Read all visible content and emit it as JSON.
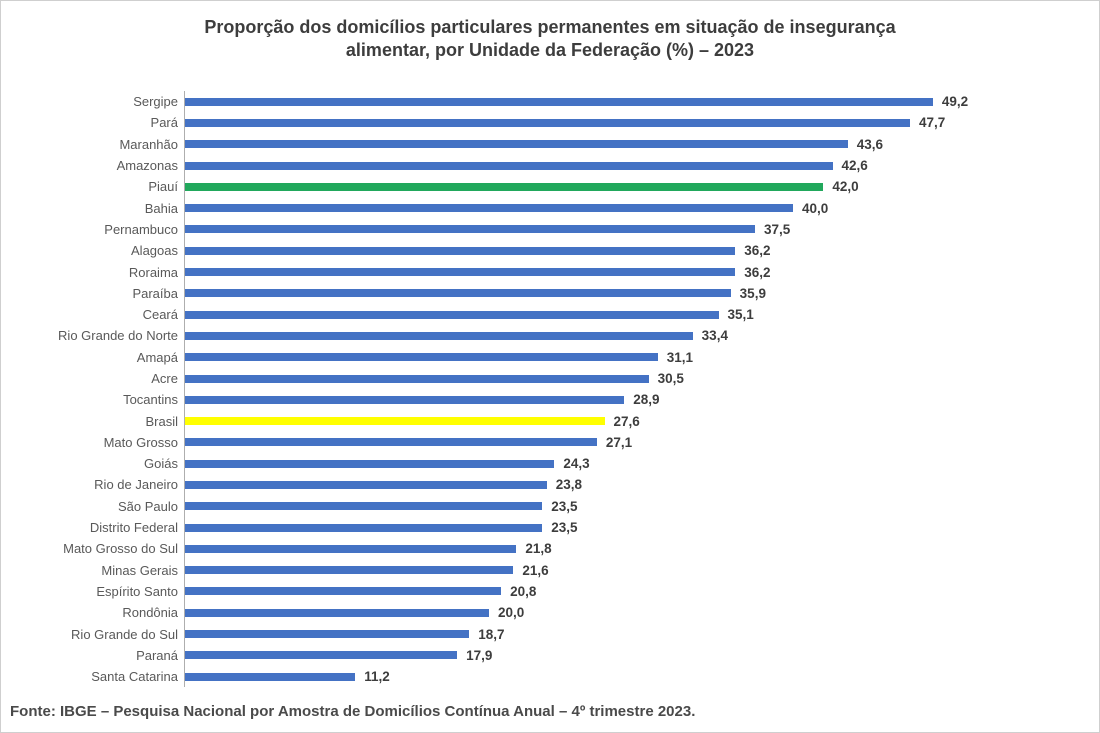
{
  "chart_data": {
    "type": "bar",
    "orientation": "horizontal",
    "title": "Proporção dos domicílios particulares permanentes em situação de insegurança alimentar, por Unidade da Federação (%) – 2023",
    "title_line1": "Proporção dos domicílios particulares permanentes em situação de insegurança",
    "title_line2": "alimentar, por Unidade da Federação (%) – 2023",
    "xlabel": "",
    "ylabel": "",
    "xlim": [
      0,
      55
    ],
    "grid": false,
    "legend": false,
    "categories": [
      "Sergipe",
      "Pará",
      "Maranhão",
      "Amazonas",
      "Piauí",
      "Bahia",
      "Pernambuco",
      "Alagoas",
      "Roraima",
      "Paraíba",
      "Ceará",
      "Rio Grande do Norte",
      "Amapá",
      "Acre",
      "Tocantins",
      "Brasil",
      "Mato Grosso",
      "Goiás",
      "Rio de Janeiro",
      "São Paulo",
      "Distrito Federal",
      "Mato Grosso do Sul",
      "Minas Gerais",
      "Espírito Santo",
      "Rondônia",
      "Rio Grande do Sul",
      "Paraná",
      "Santa Catarina"
    ],
    "values": [
      49.2,
      47.7,
      43.6,
      42.6,
      42.0,
      40.0,
      37.5,
      36.2,
      36.2,
      35.9,
      35.1,
      33.4,
      31.1,
      30.5,
      28.9,
      27.6,
      27.1,
      24.3,
      23.8,
      23.5,
      23.5,
      21.8,
      21.6,
      20.8,
      20.0,
      18.7,
      17.9,
      11.2
    ],
    "value_labels": [
      "49,2",
      "47,7",
      "43,6",
      "42,6",
      "42,0",
      "40,0",
      "37,5",
      "36,2",
      "36,2",
      "35,9",
      "35,1",
      "33,4",
      "31,1",
      "30,5",
      "28,9",
      "27,6",
      "27,1",
      "24,3",
      "23,8",
      "23,5",
      "23,5",
      "21,8",
      "21,6",
      "20,8",
      "20,0",
      "18,7",
      "17,9",
      "11,2"
    ],
    "colors": {
      "default": "#4472C4",
      "highlight_green": "#21A85C",
      "highlight_yellow": "#FFFF00"
    },
    "highlights": {
      "Piauí": "highlight_green",
      "Brasil": "highlight_yellow"
    },
    "source": "Fonte: IBGE – Pesquisa Nacional por Amostra de Domicílios Contínua Anual – 4º trimestre 2023."
  }
}
